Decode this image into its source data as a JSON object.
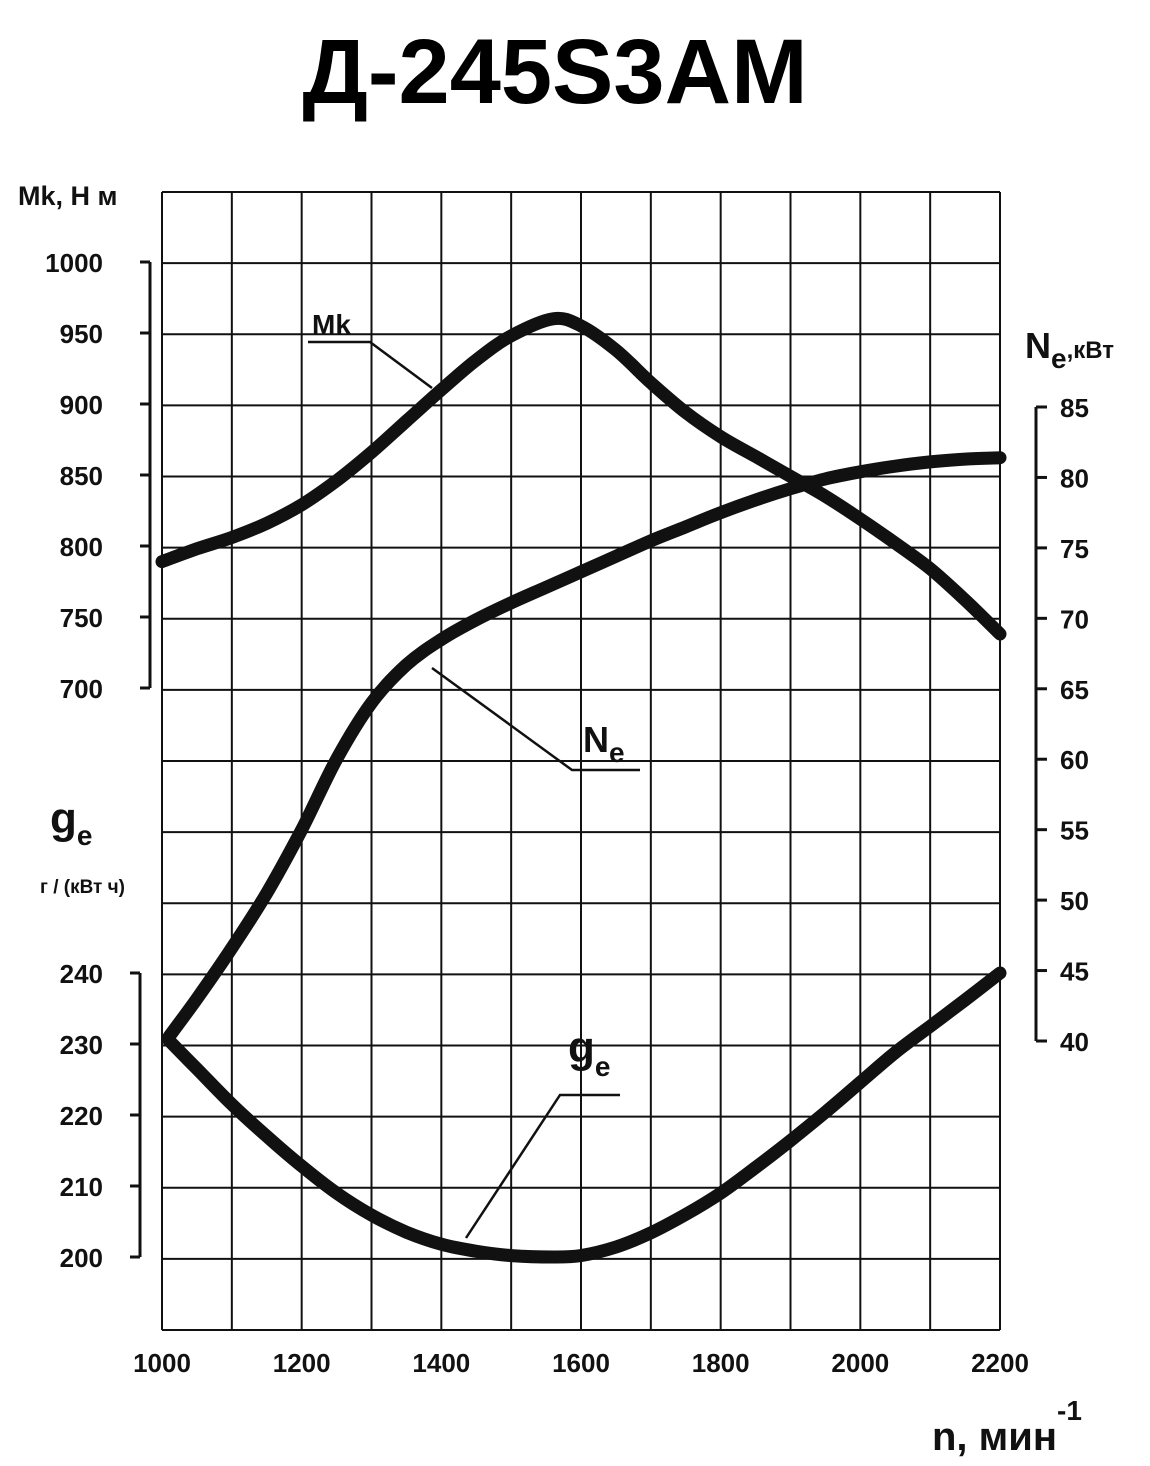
{
  "chart_data": {
    "type": "line",
    "title": "Д-245S3AM",
    "x_axis": {
      "label": "n, мин",
      "label_superscript": "-1",
      "min": 1000,
      "max": 2200,
      "ticks": [
        "1000",
        "1200",
        "1400",
        "1600",
        "1800",
        "2000",
        "2200"
      ]
    },
    "y_axes": {
      "torque": {
        "label": "Mk, Н м",
        "min": 700,
        "max": 1000,
        "ticks": [
          "1000",
          "950",
          "900",
          "850",
          "800",
          "750",
          "700"
        ]
      },
      "power": {
        "label_main": "N",
        "label_sub": "e",
        "label_unit": ",кВт",
        "min": 40,
        "max": 85,
        "ticks": [
          "85",
          "80",
          "75",
          "70",
          "65",
          "60",
          "55",
          "50",
          "45",
          "40"
        ]
      },
      "consumption": {
        "label_main": "g",
        "label_sub": "e",
        "label_unit": "г / (кВт ч)",
        "min": 200,
        "max": 240,
        "ticks": [
          "240",
          "230",
          "220",
          "210",
          "200"
        ]
      }
    },
    "series": [
      {
        "name": "Mk",
        "axis": "torque",
        "x": [
          1000,
          1050,
          1100,
          1150,
          1200,
          1250,
          1300,
          1350,
          1400,
          1450,
          1500,
          1560,
          1600,
          1650,
          1700,
          1750,
          1800,
          1850,
          1900,
          1950,
          2000,
          2050,
          2100,
          2150,
          2200
        ],
        "values": [
          789,
          798,
          806,
          816,
          829,
          846,
          866,
          888,
          910,
          931,
          948,
          960,
          955,
          938,
          915,
          894,
          877,
          863,
          849,
          835,
          819,
          802,
          784,
          762,
          738
        ]
      },
      {
        "name": "N",
        "name_sub": "e",
        "axis": "power",
        "x": [
          1010,
          1050,
          1100,
          1150,
          1200,
          1250,
          1300,
          1350,
          1400,
          1450,
          1500,
          1550,
          1600,
          1650,
          1700,
          1750,
          1800,
          1850,
          1900,
          1950,
          2000,
          2050,
          2100,
          2150,
          2200
        ],
        "values": [
          40.3,
          43.0,
          46.6,
          50.5,
          55.0,
          60.0,
          64.0,
          66.7,
          68.5,
          69.9,
          71.1,
          72.2,
          73.3,
          74.4,
          75.5,
          76.5,
          77.5,
          78.4,
          79.2,
          79.9,
          80.4,
          80.8,
          81.1,
          81.3,
          81.4
        ]
      },
      {
        "name": "g",
        "name_sub": "e",
        "axis": "consumption",
        "x": [
          1010,
          1050,
          1100,
          1150,
          1200,
          1250,
          1300,
          1350,
          1400,
          1450,
          1500,
          1560,
          1600,
          1650,
          1700,
          1750,
          1800,
          1850,
          1900,
          1950,
          2000,
          2050,
          2100,
          2150,
          2200
        ],
        "values": [
          230.5,
          226.5,
          221.5,
          217.0,
          212.8,
          209.0,
          205.9,
          203.5,
          201.8,
          200.8,
          200.2,
          200.0,
          200.2,
          201.4,
          203.4,
          206.0,
          209.0,
          212.6,
          216.4,
          220.4,
          224.6,
          228.8,
          232.5,
          236.2,
          240.0
        ]
      }
    ],
    "grid": true
  }
}
